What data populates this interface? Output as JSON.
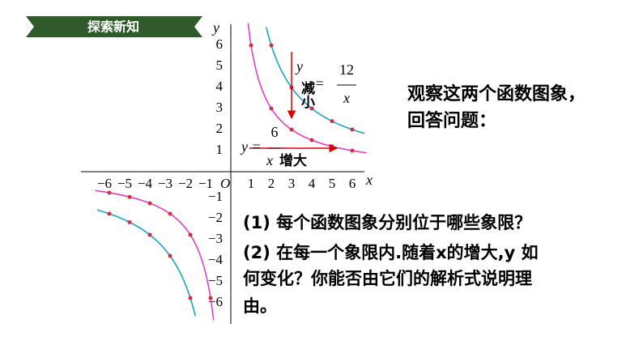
{
  "banner": "探索新知",
  "graph": {
    "x_label": "x",
    "y_label": "y",
    "origin": "O",
    "x_ticks": [
      "−6",
      "−5",
      "−4",
      "−3",
      "−2",
      "−1",
      "1",
      "2",
      "3",
      "4",
      "5",
      "6"
    ],
    "y_ticks": [
      "6",
      "5",
      "4",
      "3",
      "2",
      "1",
      "−1",
      "−2",
      "−3",
      "−4",
      "−5",
      "−6"
    ]
  },
  "formula_12": {
    "lhs": "y =",
    "numerator": "12",
    "denominator": "x"
  },
  "formula_6": {
    "lhs": "y =",
    "numerator": "6",
    "denominator": "x"
  },
  "annotations": {
    "decrease_var": "y",
    "decrease": "减小",
    "increase": "增大"
  },
  "prompt": [
    "观察这两个函数图象，",
    "回答问题："
  ],
  "questions": [
    "(1) 每个函数图象分别位于哪些象限？",
    "(2) 在每一个象限内.随着x的增大,y 如",
    "何变化？你能否由它们的解析式说明理",
    "由。"
  ]
}
